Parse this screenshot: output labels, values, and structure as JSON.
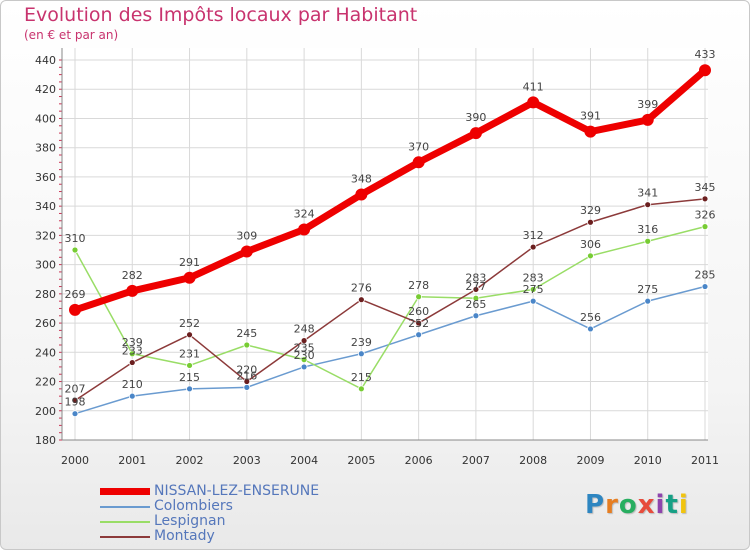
{
  "header": {
    "title": "Evolution des Impôts locaux par Habitant",
    "subtitle": "(en € et par an)"
  },
  "logo": {
    "letters": [
      "P",
      "r",
      "o",
      "x",
      "i",
      "t",
      "i"
    ],
    "colors": [
      "#2e86c1",
      "#e67e22",
      "#27ae60",
      "#e74c3c",
      "#8e44ad",
      "#16a085",
      "#f1c40f"
    ]
  },
  "chart_data": {
    "type": "line",
    "title": "Evolution des Impôts locaux par Habitant",
    "subtitle": "(en € et par an)",
    "xlabel": "",
    "ylabel": "",
    "x": [
      "2000",
      "2001",
      "2002",
      "2003",
      "2004",
      "2005",
      "2006",
      "2007",
      "2008",
      "2009",
      "2010",
      "2011"
    ],
    "ylim": [
      180,
      440
    ],
    "yticks": [
      180,
      200,
      220,
      240,
      260,
      280,
      300,
      320,
      340,
      360,
      380,
      400,
      420,
      440
    ],
    "grid": true,
    "legend_position": "bottom-left",
    "series": [
      {
        "name": "NISSAN-LEZ-ENSERUNE",
        "color": "#ee0000",
        "width": 7,
        "marker": 6,
        "values": [
          269,
          282,
          291,
          309,
          324,
          348,
          370,
          390,
          411,
          391,
          399,
          433
        ],
        "labels": [
          "269",
          "282",
          "291",
          "309",
          "324",
          "348",
          "370",
          "390",
          "411",
          "391",
          "399",
          "433"
        ]
      },
      {
        "name": "Colombiers",
        "color": "#6a9bd0",
        "marker_color": "#4a86c8",
        "width": 1.5,
        "marker": 3,
        "values": [
          198,
          210,
          215,
          216,
          230,
          239,
          252,
          265,
          275,
          256,
          275,
          285
        ],
        "labels": [
          "198",
          "210",
          "215",
          "216",
          "230",
          "239",
          "252",
          "265",
          "275",
          "256",
          "275",
          "285"
        ]
      },
      {
        "name": "Lespignan",
        "color": "#99dd66",
        "marker_color": "#77cc33",
        "width": 1.5,
        "marker": 3,
        "values": [
          310,
          239,
          231,
          245,
          235,
          215,
          278,
          277,
          283,
          306,
          316,
          326
        ],
        "labels": [
          "310",
          "239",
          "231",
          "245",
          "235",
          "215",
          "278",
          "277",
          "283",
          "306",
          "316",
          "326"
        ]
      },
      {
        "name": "Montady",
        "color": "#8c3a3a",
        "marker_color": "#6b1f1f",
        "width": 1.5,
        "marker": 3,
        "values": [
          207,
          233,
          252,
          220,
          248,
          276,
          260,
          283,
          312,
          329,
          341,
          345
        ],
        "labels": [
          "207",
          "233",
          "252",
          "220",
          "248",
          "276",
          "260",
          "283",
          "312",
          "329",
          "341",
          "345"
        ]
      }
    ]
  }
}
